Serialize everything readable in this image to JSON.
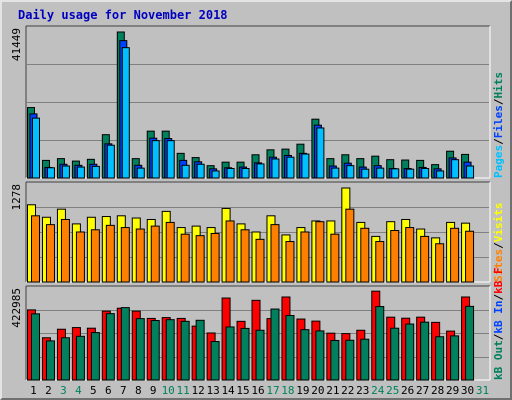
{
  "title": "Daily usage for November 2018",
  "colors": {
    "title": "#0000c0",
    "panel_bg": "#c0c0c0",
    "hits": "#00805c",
    "files": "#0040ff",
    "pages": "#00c0ff",
    "visits": "#ffff00",
    "sites": "#ff8000",
    "kbin": "#ff0000",
    "kbout": "#00805c",
    "weekend_label": "#00805c",
    "weekday_label": "#000000",
    "slash": "#000000"
  },
  "chart_data": [
    {
      "type": "bar",
      "title": "Daily usage for November 2018",
      "y_label_max": "41449",
      "ylim": [
        0,
        41449
      ],
      "legend": [
        {
          "label": "Pages",
          "color": "#00c0ff"
        },
        {
          "label": "Files",
          "color": "#0040ff"
        },
        {
          "label": "Hits",
          "color": "#00805c"
        }
      ],
      "categories": [
        "1",
        "2",
        "3",
        "4",
        "5",
        "6",
        "7",
        "8",
        "9",
        "10",
        "11",
        "12",
        "13",
        "14",
        "15",
        "16",
        "17",
        "18",
        "19",
        "20",
        "21",
        "22",
        "23",
        "24",
        "25",
        "26",
        "27",
        "28",
        "29",
        "30",
        "31"
      ],
      "series": [
        {
          "name": "Hits",
          "values": [
            20000,
            5000,
            5500,
            4800,
            5300,
            12300,
            41449,
            5500,
            13300,
            13300,
            7000,
            5800,
            3500,
            4500,
            4500,
            6600,
            8000,
            8200,
            9600,
            16700,
            5500,
            6600,
            5500,
            6200,
            5200,
            5100,
            5000,
            3800,
            7600,
            6700,
            0
          ]
        },
        {
          "name": "Files",
          "values": [
            18200,
            3000,
            3900,
            3600,
            3900,
            9700,
            39000,
            3600,
            11300,
            11200,
            5000,
            4600,
            2600,
            2900,
            3100,
            4300,
            5900,
            6400,
            7000,
            15000,
            3400,
            4200,
            3100,
            3500,
            2700,
            2700,
            3000,
            2600,
            5700,
            4500,
            0
          ]
        },
        {
          "name": "Pages",
          "values": [
            17000,
            2900,
            3400,
            3100,
            3300,
            9300,
            37000,
            2800,
            10600,
            10600,
            3600,
            3900,
            2000,
            2700,
            2700,
            4000,
            5400,
            5900,
            6800,
            14200,
            2800,
            3500,
            2500,
            2800,
            2600,
            2500,
            2700,
            2000,
            5200,
            3400,
            0
          ]
        }
      ]
    },
    {
      "type": "bar",
      "y_label_max": "1278",
      "ylim": [
        0,
        1278
      ],
      "legend": [
        {
          "label": "Sites",
          "color": "#ff8000"
        },
        {
          "label": "Visits",
          "color": "#ffff00"
        }
      ],
      "categories": [
        "1",
        "2",
        "3",
        "4",
        "5",
        "6",
        "7",
        "8",
        "9",
        "10",
        "11",
        "12",
        "13",
        "14",
        "15",
        "16",
        "17",
        "18",
        "19",
        "20",
        "21",
        "22",
        "23",
        "24",
        "25",
        "26",
        "27",
        "28",
        "29",
        "30",
        "31"
      ],
      "series": [
        {
          "name": "Visits",
          "values": [
            1050,
            880,
            990,
            790,
            880,
            890,
            900,
            870,
            850,
            960,
            740,
            760,
            740,
            1000,
            790,
            680,
            900,
            640,
            740,
            830,
            830,
            1278,
            810,
            620,
            820,
            850,
            720,
            600,
            810,
            800,
            0
          ]
        },
        {
          "name": "Sites",
          "values": [
            900,
            780,
            850,
            680,
            710,
            770,
            740,
            720,
            760,
            810,
            650,
            630,
            660,
            830,
            710,
            580,
            780,
            550,
            680,
            820,
            650,
            990,
            730,
            550,
            700,
            740,
            620,
            520,
            730,
            690,
            0
          ]
        }
      ]
    },
    {
      "type": "bar",
      "y_label_max": "422985",
      "ylim": [
        0,
        422985
      ],
      "legend": [
        {
          "label": "kB Out",
          "color": "#00805c"
        },
        {
          "label": "kB In",
          "color": "#0040ff"
        },
        {
          "label": "kB F",
          "color": "#ff0000"
        }
      ],
      "categories": [
        "1",
        "2",
        "3",
        "4",
        "5",
        "6",
        "7",
        "8",
        "9",
        "10",
        "11",
        "12",
        "13",
        "14",
        "15",
        "16",
        "17",
        "18",
        "19",
        "20",
        "21",
        "22",
        "23",
        "24",
        "25",
        "26",
        "27",
        "28",
        "29",
        "30",
        "31"
      ],
      "series": [
        {
          "name": "kB F",
          "values": [
            337000,
            203000,
            244000,
            252000,
            249000,
            331000,
            345000,
            331000,
            296000,
            300000,
            296000,
            259000,
            226000,
            394000,
            282000,
            383000,
            295000,
            399000,
            293000,
            283000,
            225000,
            223000,
            239000,
            427000,
            302000,
            297000,
            302000,
            277000,
            235000,
            399000,
            0
          ]
        },
        {
          "name": "kB Out",
          "values": [
            318000,
            188000,
            203000,
            210000,
            228000,
            319000,
            348000,
            295000,
            286000,
            290000,
            282000,
            287000,
            185000,
            255000,
            248000,
            239000,
            341000,
            310000,
            242000,
            236000,
            190000,
            191000,
            196000,
            353000,
            249000,
            269000,
            278000,
            208000,
            212000,
            354000,
            0
          ]
        }
      ]
    }
  ],
  "day_labels": [
    {
      "text": "1",
      "weekend": false
    },
    {
      "text": "2",
      "weekend": false
    },
    {
      "text": "3",
      "weekend": true
    },
    {
      "text": "4",
      "weekend": true
    },
    {
      "text": "5",
      "weekend": false
    },
    {
      "text": "6",
      "weekend": false
    },
    {
      "text": "7",
      "weekend": false
    },
    {
      "text": "8",
      "weekend": false
    },
    {
      "text": "9",
      "weekend": false
    },
    {
      "text": "10",
      "weekend": true
    },
    {
      "text": "11",
      "weekend": true
    },
    {
      "text": "12",
      "weekend": false
    },
    {
      "text": "13",
      "weekend": false
    },
    {
      "text": "14",
      "weekend": false
    },
    {
      "text": "15",
      "weekend": false
    },
    {
      "text": "16",
      "weekend": false
    },
    {
      "text": "17",
      "weekend": true
    },
    {
      "text": "18",
      "weekend": true
    },
    {
      "text": "19",
      "weekend": false
    },
    {
      "text": "20",
      "weekend": false
    },
    {
      "text": "21",
      "weekend": false
    },
    {
      "text": "22",
      "weekend": false
    },
    {
      "text": "23",
      "weekend": false
    },
    {
      "text": "24",
      "weekend": true
    },
    {
      "text": "25",
      "weekend": true
    },
    {
      "text": "26",
      "weekend": false
    },
    {
      "text": "27",
      "weekend": false
    },
    {
      "text": "28",
      "weekend": false
    },
    {
      "text": "29",
      "weekend": false
    },
    {
      "text": "30",
      "weekend": false
    },
    {
      "text": "31",
      "weekend": true
    }
  ]
}
